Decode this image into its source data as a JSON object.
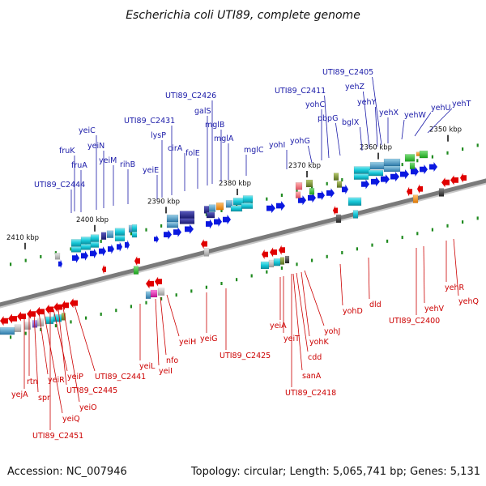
{
  "title": "Escherichia coli UTI89, complete genome",
  "footer": {
    "accession": "Accession: NC_007946",
    "summary": "Topology: circular; Length: 5,065,741 bp; Genes: 5,131"
  },
  "colors": {
    "forward": "#0a18e0",
    "reverse": "#e00000",
    "backbone": "#7a7a7a",
    "label_top": "#1a1aa8",
    "label_bottom": "#cc0000",
    "tick": "#1f8a1f"
  },
  "kbp_ticks": [
    "2410 kbp",
    "2400 kbp",
    "2390 kbp",
    "2380 kbp",
    "2370 kbp",
    "2360 kbp",
    "2350 kbp"
  ],
  "top_labels": [
    "UTI89_C2444",
    "fruA",
    "fruK",
    "yeiC",
    "yeiN",
    "yeiM",
    "rihB",
    "yeiE",
    "lysP",
    "UTI89_C2431",
    "cirA",
    "folE",
    "galS",
    "UTI89_C2426",
    "mglB",
    "mglA",
    "mglC",
    "yohI",
    "yohG",
    "yohC",
    "UTI89_C2411",
    "pbpG",
    "bglX",
    "yehZ",
    "yehY",
    "UTI89_C2405",
    "yehX",
    "yehW",
    "yehU",
    "yehT"
  ],
  "bottom_labels": [
    "yejA",
    "rtn",
    "spr",
    "yeiR",
    "yeiQ",
    "UTI89_C2451",
    "yeiP",
    "UTI89_C2445",
    "yeiO",
    "UTI89_C2441",
    "yeiL",
    "nfo",
    "yeiI",
    "yeiH",
    "yeiG",
    "UTI89_C2425",
    "yeiA",
    "yeiT",
    "cdd",
    "sanA",
    "UTI89_C2418",
    "yohK",
    "yohJ",
    "yohD",
    "dld",
    "UTI89_C2400",
    "yehV",
    "yehR",
    "yehQ"
  ]
}
